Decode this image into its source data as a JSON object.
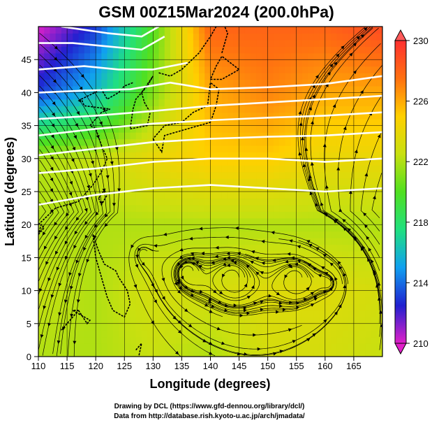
{
  "title": "GSM 00Z15Mar2024 (200.0hPa)",
  "xlabel": "Longitude (degrees)",
  "ylabel": "Latitude  (degrees)",
  "credits": {
    "line1": "Drawing by DCL (https://www.gfd-dennou.org/library/dcl/)",
    "line2": "Data from http://database.rish.kyoto-u.ac.jp/arch/jmadata/"
  },
  "chart_data": {
    "type": "heatmap",
    "variable": "temperature with wind streamlines",
    "x_range": [
      110,
      170
    ],
    "y_range": [
      0,
      50
    ],
    "x_ticks": [
      110,
      115,
      120,
      125,
      130,
      135,
      140,
      145,
      150,
      155,
      160,
      165
    ],
    "y_ticks": [
      0,
      5,
      10,
      15,
      20,
      25,
      30,
      35,
      40,
      45
    ],
    "colorbar": {
      "min": 210,
      "max": 230,
      "ticks": [
        210,
        214,
        218,
        222,
        226,
        230
      ],
      "colors": [
        "#e020c8",
        "#2020d0",
        "#10a0f0",
        "#20e080",
        "#50e020",
        "#c8e010",
        "#ffd000",
        "#ff7010",
        "#ff3030"
      ]
    },
    "temperature_grid": {
      "lat": [
        0,
        10,
        20,
        30,
        40,
        50
      ],
      "lon": [
        110,
        120,
        130,
        140,
        150,
        160,
        170
      ],
      "values": [
        [
          222,
          222,
          222.5,
          222,
          223,
          223,
          222.5
        ],
        [
          222.5,
          222,
          223,
          223,
          223.5,
          223.5,
          223
        ],
        [
          222,
          222,
          222,
          222,
          222,
          222,
          222
        ],
        [
          222,
          222.5,
          224,
          225,
          225,
          224,
          224
        ],
        [
          213,
          216,
          221,
          226,
          227,
          226,
          226
        ],
        [
          210,
          213,
          220,
          228,
          228,
          228,
          229
        ]
      ]
    },
    "contour_lines": [
      {
        "name": "",
        "points": [
          [
            110,
            23
          ],
          [
            120,
            24.5
          ],
          [
            130,
            25.5
          ],
          [
            140,
            26
          ],
          [
            150,
            25.5
          ],
          [
            160,
            25
          ],
          [
            170,
            25.5
          ]
        ]
      },
      {
        "name": "",
        "points": [
          [
            110,
            27.8
          ],
          [
            120,
            28.5
          ],
          [
            130,
            29.5
          ],
          [
            140,
            30
          ],
          [
            150,
            30
          ],
          [
            160,
            29.5
          ],
          [
            170,
            30
          ]
        ]
      },
      {
        "name": "",
        "points": [
          [
            110,
            30.5
          ],
          [
            120,
            31.5
          ],
          [
            130,
            32.5
          ],
          [
            140,
            33
          ],
          [
            150,
            33.3
          ],
          [
            160,
            33.5
          ],
          [
            170,
            34
          ]
        ]
      },
      {
        "name": "",
        "points": [
          [
            110,
            33.5
          ],
          [
            120,
            34.5
          ],
          [
            130,
            35.3
          ],
          [
            140,
            35.8
          ],
          [
            150,
            36.2
          ],
          [
            160,
            36.5
          ],
          [
            170,
            37
          ]
        ]
      },
      {
        "name": "",
        "points": [
          [
            110,
            36
          ],
          [
            120,
            36.5
          ],
          [
            130,
            37.2
          ],
          [
            140,
            38
          ],
          [
            150,
            38.5
          ],
          [
            160,
            39
          ],
          [
            170,
            39.5
          ]
        ]
      },
      {
        "name": "",
        "points": [
          [
            110,
            40
          ],
          [
            118,
            40.3
          ],
          [
            126,
            40.5
          ],
          [
            133,
            41.5
          ],
          [
            140,
            40.5
          ],
          [
            150,
            40.8
          ],
          [
            160,
            41.3
          ],
          [
            170,
            42.5
          ]
        ]
      },
      {
        "name": "",
        "points": [
          [
            110,
            43.5
          ],
          [
            118,
            44
          ],
          [
            124,
            43.5
          ],
          [
            130,
            43.5
          ],
          [
            136,
            44.5
          ]
        ]
      },
      {
        "name": "",
        "points": [
          [
            110,
            47.5
          ],
          [
            116,
            47.5
          ],
          [
            122,
            47
          ],
          [
            128,
            46.5
          ],
          [
            132,
            48.5
          ]
        ]
      },
      {
        "name": "",
        "points": [
          [
            114,
            50
          ],
          [
            122,
            49
          ],
          [
            128,
            48.5
          ],
          [
            131,
            50
          ]
        ]
      }
    ],
    "cyclones": [
      {
        "lon": 161,
        "lat": 11
      },
      {
        "lon": 155,
        "lat": 12
      },
      {
        "lon": 144,
        "lat": 12
      },
      {
        "lon": 128,
        "lat": 16
      },
      {
        "lon": 136,
        "lat": 13
      }
    ]
  }
}
